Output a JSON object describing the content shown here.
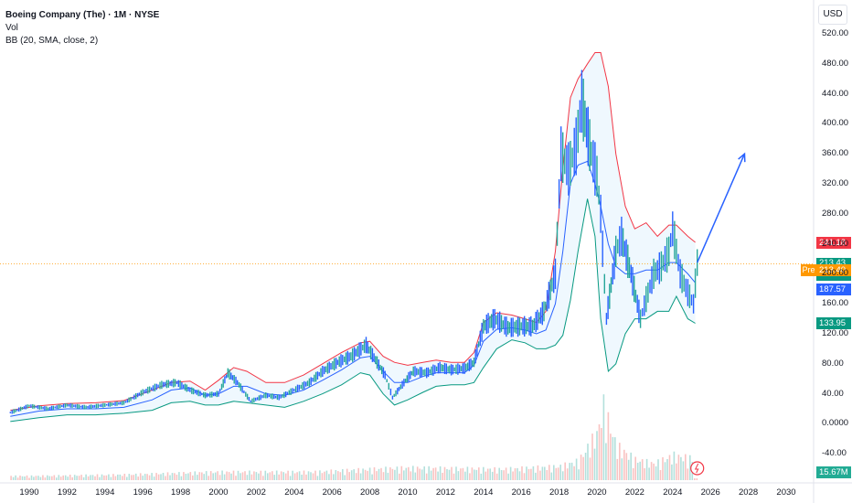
{
  "header": {
    "title": "Boeing Company (The) · 1M · NYSE",
    "vol_label": "Vol",
    "bb_label": "BB (20, SMA, close, 2)",
    "currency": "USD"
  },
  "price_badges": {
    "bb_upper": {
      "text": "241.18",
      "color": "#f23645"
    },
    "last": {
      "text": "213.43",
      "sub": "26d 9h",
      "color": "#089981"
    },
    "pre_tag": "Pre",
    "pre": {
      "text": "213.40",
      "color": "#ff9800"
    },
    "bb_basis": {
      "text": "187.57",
      "color": "#2962ff"
    },
    "bb_lower": {
      "text": "133.95",
      "color": "#089981"
    },
    "volume": {
      "text": "15.67M",
      "color": "#22ab94"
    }
  },
  "chart_data": {
    "type": "line",
    "title": "Boeing Company (The) · 1M · NYSE",
    "xlabel": "",
    "ylabel": "USD",
    "ylim": [
      -40,
      520
    ],
    "xlim": [
      1989,
      2031
    ],
    "y_ticks": [
      "520.00",
      "480.00",
      "440.00",
      "400.00",
      "360.00",
      "320.00",
      "280.00",
      "240.00",
      "200.00",
      "160.00",
      "120.00",
      "80.00",
      "40.00",
      "0.0000",
      "-40.00"
    ],
    "x_ticks": [
      "1990",
      "1992",
      "1994",
      "1996",
      "1998",
      "2000",
      "2002",
      "2004",
      "2006",
      "2008",
      "2010",
      "2012",
      "2014",
      "2016",
      "2018",
      "2020",
      "2022",
      "2024",
      "2026",
      "2028",
      "2030"
    ],
    "grid": true,
    "series": [
      {
        "name": "BB Upper",
        "color": "#f23645",
        "x": [
          1989.0,
          1990.5,
          1992.0,
          1993.5,
          1995.0,
          1996.5,
          1997.5,
          1998.5,
          1999.3,
          2000.0,
          2000.8,
          2001.5,
          2002.5,
          2003.5,
          2004.5,
          2005.5,
          2006.5,
          2007.5,
          2008.0,
          2008.7,
          2009.3,
          2010.0,
          2010.8,
          2011.5,
          2012.3,
          2013.0,
          2013.5,
          2014.0,
          2014.7,
          2015.5,
          2016.2,
          2016.8,
          2017.3,
          2017.8,
          2018.2,
          2018.6,
          2019.0,
          2019.5,
          2019.9,
          2020.2,
          2020.6,
          2021.0,
          2021.5,
          2022.0,
          2022.6,
          2023.2,
          2023.8,
          2024.2,
          2024.8,
          2025.2
        ],
        "y": [
          18,
          24,
          27,
          28,
          31,
          45,
          55,
          57,
          45,
          58,
          75,
          70,
          55,
          55,
          65,
          80,
          95,
          108,
          110,
          90,
          82,
          78,
          82,
          85,
          82,
          82,
          95,
          135,
          148,
          145,
          140,
          135,
          150,
          230,
          340,
          435,
          460,
          480,
          495,
          495,
          450,
          360,
          290,
          260,
          268,
          250,
          265,
          265,
          250,
          242
        ]
      },
      {
        "name": "BB Basis",
        "color": "#2962ff",
        "x": [
          1989.0,
          1990.5,
          1992.0,
          1993.5,
          1995.0,
          1996.5,
          1997.5,
          1998.5,
          1999.3,
          2000.0,
          2000.8,
          2001.5,
          2002.5,
          2003.5,
          2004.5,
          2005.5,
          2006.5,
          2007.5,
          2008.0,
          2008.7,
          2009.3,
          2010.0,
          2010.8,
          2011.5,
          2012.3,
          2013.0,
          2013.5,
          2014.0,
          2014.7,
          2015.5,
          2016.2,
          2016.8,
          2017.3,
          2017.8,
          2018.2,
          2018.6,
          2019.0,
          2019.5,
          2019.9,
          2020.2,
          2020.6,
          2021.0,
          2021.5,
          2022.0,
          2022.6,
          2023.2,
          2023.8,
          2024.2,
          2024.8,
          2025.2
        ],
        "y": [
          10,
          17,
          20,
          20,
          22,
          32,
          45,
          48,
          38,
          40,
          50,
          50,
          40,
          38,
          45,
          58,
          72,
          88,
          90,
          70,
          55,
          55,
          63,
          68,
          68,
          68,
          78,
          110,
          126,
          128,
          125,
          120,
          125,
          160,
          230,
          320,
          345,
          350,
          320,
          290,
          240,
          210,
          200,
          200,
          205,
          205,
          215,
          215,
          200,
          188
        ]
      },
      {
        "name": "BB Lower",
        "color": "#089981",
        "x": [
          1989.0,
          1990.5,
          1992.0,
          1993.5,
          1995.0,
          1996.5,
          1997.5,
          1998.5,
          1999.3,
          2000.0,
          2000.8,
          2001.5,
          2002.5,
          2003.5,
          2004.5,
          2005.5,
          2006.5,
          2007.5,
          2008.0,
          2008.7,
          2009.3,
          2010.0,
          2010.8,
          2011.5,
          2012.3,
          2013.0,
          2013.5,
          2014.0,
          2014.7,
          2015.5,
          2016.2,
          2016.8,
          2017.3,
          2017.8,
          2018.2,
          2018.6,
          2019.0,
          2019.5,
          2019.9,
          2020.2,
          2020.6,
          2021.0,
          2021.5,
          2022.0,
          2022.6,
          2023.2,
          2023.8,
          2024.2,
          2024.8,
          2025.2
        ],
        "y": [
          3,
          8,
          12,
          12,
          14,
          18,
          28,
          30,
          25,
          25,
          30,
          28,
          25,
          22,
          30,
          40,
          52,
          68,
          65,
          40,
          25,
          32,
          42,
          50,
          52,
          52,
          55,
          75,
          100,
          112,
          108,
          100,
          100,
          105,
          118,
          165,
          230,
          300,
          250,
          140,
          70,
          80,
          120,
          140,
          140,
          150,
          150,
          170,
          140,
          134
        ]
      }
    ],
    "price_path": {
      "name": "Price",
      "x": [
        1989.0,
        1990.0,
        1991.0,
        1992.0,
        1993.0,
        1994.0,
        1995.0,
        1996.0,
        1997.0,
        1997.8,
        1998.5,
        1999.3,
        2000.0,
        2000.5,
        2001.0,
        2001.7,
        2002.5,
        2003.2,
        2004.0,
        2004.8,
        2005.5,
        2006.3,
        2007.0,
        2007.8,
        2008.3,
        2008.8,
        2009.2,
        2009.8,
        2010.3,
        2011.0,
        2011.7,
        2012.3,
        2013.0,
        2013.5,
        2014.0,
        2014.6,
        2015.3,
        2016.0,
        2016.6,
        2017.2,
        2017.8,
        2018.1,
        2018.5,
        2018.9,
        2019.2,
        2019.7,
        2020.0,
        2020.2,
        2020.5,
        2021.0,
        2021.3,
        2021.8,
        2022.3,
        2022.7,
        2023.0,
        2023.4,
        2023.8,
        2024.0,
        2024.4,
        2024.8,
        2025.1,
        2025.3
      ],
      "y": [
        15,
        24,
        20,
        25,
        22,
        25,
        28,
        42,
        52,
        55,
        45,
        38,
        40,
        68,
        55,
        30,
        38,
        35,
        45,
        55,
        70,
        82,
        90,
        105,
        85,
        65,
        35,
        55,
        70,
        68,
        75,
        72,
        74,
        82,
        130,
        140,
        128,
        130,
        130,
        150,
        200,
        360,
        340,
        370,
        430,
        360,
        330,
        280,
        140,
        230,
        250,
        200,
        140,
        175,
        200,
        210,
        230,
        260,
        200,
        175,
        160,
        215
      ]
    },
    "volume": {
      "name": "Vol",
      "x": [
        1990,
        1995,
        2000,
        2005,
        2008,
        2010,
        2015,
        2018,
        2019,
        2020,
        2020.3,
        2021,
        2022,
        2023,
        2024,
        2025
      ],
      "y": [
        3,
        4,
        6,
        6,
        8,
        9,
        8,
        10,
        14,
        35,
        55,
        25,
        15,
        12,
        18,
        15.67
      ],
      "unit": "M",
      "last": "15.67M"
    },
    "projection": {
      "name": "Forecast arrow",
      "x": [
        2025.3,
        2027.8
      ],
      "y": [
        215,
        360
      ]
    },
    "current_price_line": 213.43
  }
}
